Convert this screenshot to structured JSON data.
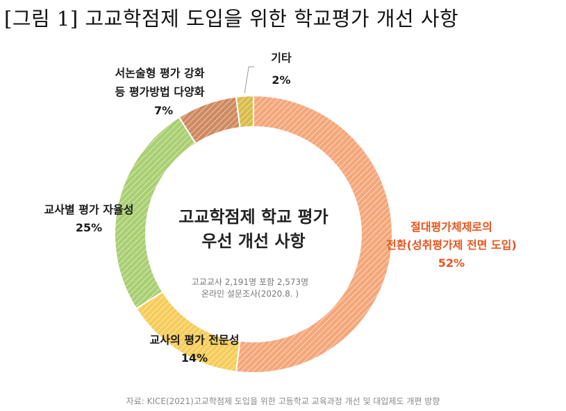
{
  "figure_title": "[그림 1] 고교학점제 도입을 위한 학교평가 개선 사항",
  "center": {
    "title_line1": "고교학점제 학교 평가",
    "title_line2": "우선 개선 사항",
    "note_line1": "고교교사 2,191명 포함 2,573명",
    "note_line2": "온라인 설문조사(2020.8. )"
  },
  "source": "자료: KICE(2021)고교학점제 도입을 위한 고등학교 교육과정 개선 및 대입제도 개편 방향",
  "chart_data": {
    "type": "pie",
    "donut": true,
    "title": "고교학점제 학교 평가 우선 개선 사항",
    "categories": [
      "절대평가체제로의 전환(성취평가제 전면 도입)",
      "교사의 평가 전문성",
      "교사별 평가 자율성",
      "서논술형 평가 강화 등 평가방법 다양화",
      "기타"
    ],
    "values": [
      52,
      14,
      25,
      7,
      2
    ],
    "value_labels": [
      "52%",
      "14%",
      "25%",
      "7%",
      "2%"
    ],
    "label_lines": [
      [
        "절대평가체제로의",
        "전환(성취평가제 전면 도입)"
      ],
      [
        "교사의 평가 전문성"
      ],
      [
        "교사별 평가 자율성"
      ],
      [
        "서논술형 평가 강화",
        "등 평가방법 다양화"
      ],
      [
        "기타"
      ]
    ],
    "colors": [
      "#f4a77a",
      "#f6cc5a",
      "#a9cf72",
      "#cf8a60",
      "#d8bc49"
    ],
    "hatch_colors": [
      "#ffffff",
      "#ffffff",
      "#ffffff",
      "#ffffff",
      "#ffffff"
    ],
    "label_colors": [
      "#e8531c",
      "#1a1a1a",
      "#1a1a1a",
      "#1a1a1a",
      "#1a1a1a"
    ],
    "start": "top, clockwise"
  }
}
